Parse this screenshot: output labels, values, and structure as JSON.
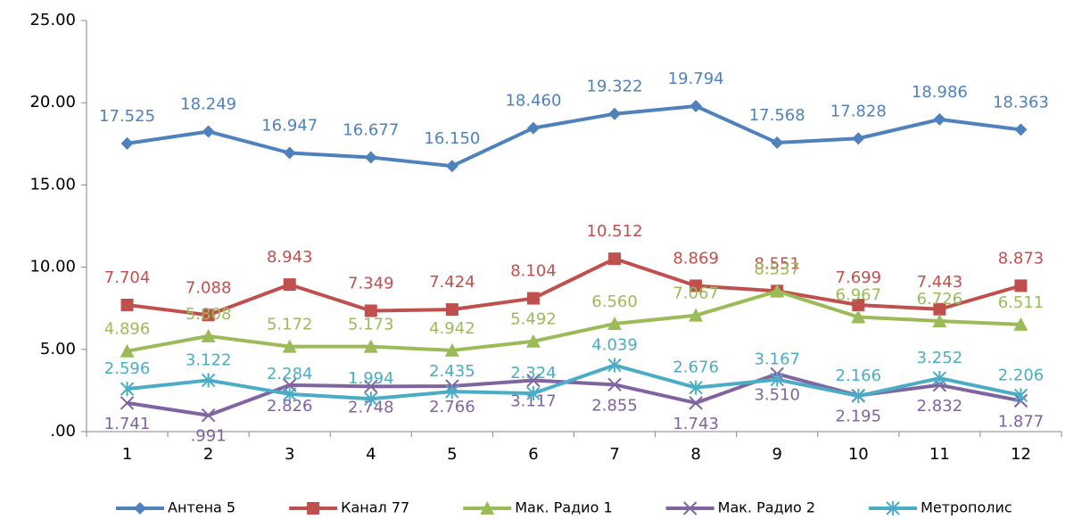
{
  "chart_data": {
    "type": "line",
    "categories": [
      1,
      2,
      3,
      4,
      5,
      6,
      7,
      8,
      9,
      10,
      11,
      12
    ],
    "ylim": [
      0,
      25
    ],
    "yticks": [
      {
        "value": 0,
        "label": ".00"
      },
      {
        "value": 5,
        "label": "5.00"
      },
      {
        "value": 10,
        "label": "10.00"
      },
      {
        "value": 15,
        "label": "15.00"
      },
      {
        "value": 20,
        "label": "20.00"
      },
      {
        "value": 25,
        "label": "25.00"
      }
    ],
    "legend": "bottom",
    "series": [
      {
        "name": "Антена 5",
        "color": "#4f81bd",
        "marker": "diamond",
        "values": [
          17.525,
          18.249,
          16.947,
          16.677,
          16.15,
          18.46,
          19.322,
          19.794,
          17.568,
          17.828,
          18.986,
          18.363
        ],
        "value_labels": [
          "17.525",
          "18.249",
          "16.947",
          "16.677",
          "16.150",
          "18.460",
          "19.322",
          "19.794",
          "17.568",
          "17.828",
          "18.986",
          "18.363"
        ]
      },
      {
        "name": "Канал 77",
        "color": "#c0504d",
        "marker": "square",
        "values": [
          7.704,
          7.088,
          8.943,
          7.349,
          7.424,
          8.104,
          10.512,
          8.869,
          8.551,
          7.699,
          7.443,
          8.873
        ],
        "value_labels": [
          "7.704",
          "7.088",
          "8.943",
          "7.349",
          "7.424",
          "8.104",
          "10.512",
          "8.869",
          "8.551",
          "7.699",
          "7.443",
          "8.873"
        ]
      },
      {
        "name": "Мак. Радио 1",
        "color": "#9bbb59",
        "marker": "triangle",
        "values": [
          4.896,
          5.808,
          5.172,
          5.173,
          4.942,
          5.492,
          6.56,
          7.067,
          8.537,
          6.967,
          6.726,
          6.511
        ],
        "value_labels": [
          "4.896",
          "5.808",
          "5.172",
          "5.173",
          "4.942",
          "5.492",
          "6.560",
          "7.067",
          "8.537",
          "6.967",
          "6.726",
          "6.511"
        ]
      },
      {
        "name": "Мак. Радио 2",
        "color": "#8064a2",
        "marker": "x",
        "values": [
          1.741,
          0.991,
          2.826,
          2.748,
          2.766,
          3.117,
          2.855,
          1.743,
          3.51,
          2.195,
          2.832,
          1.877
        ],
        "value_labels": [
          "1.741",
          ".991",
          "2.826",
          "2.748",
          "2.766",
          "3.117",
          "2.855",
          "1.743",
          "3.510",
          "2.195",
          "2.832",
          "1.877"
        ]
      },
      {
        "name": "Метрополис",
        "color": "#4bacc6",
        "marker": "star",
        "values": [
          2.596,
          3.122,
          2.284,
          1.994,
          2.435,
          2.324,
          4.039,
          2.676,
          3.167,
          2.166,
          3.252,
          2.206
        ],
        "value_labels": [
          "2.596",
          "3.122",
          "2.284",
          "1.994",
          "2.435",
          "2.324",
          "4.039",
          "2.676",
          "3.167",
          "2.166",
          "3.252",
          "2.206"
        ]
      }
    ]
  }
}
